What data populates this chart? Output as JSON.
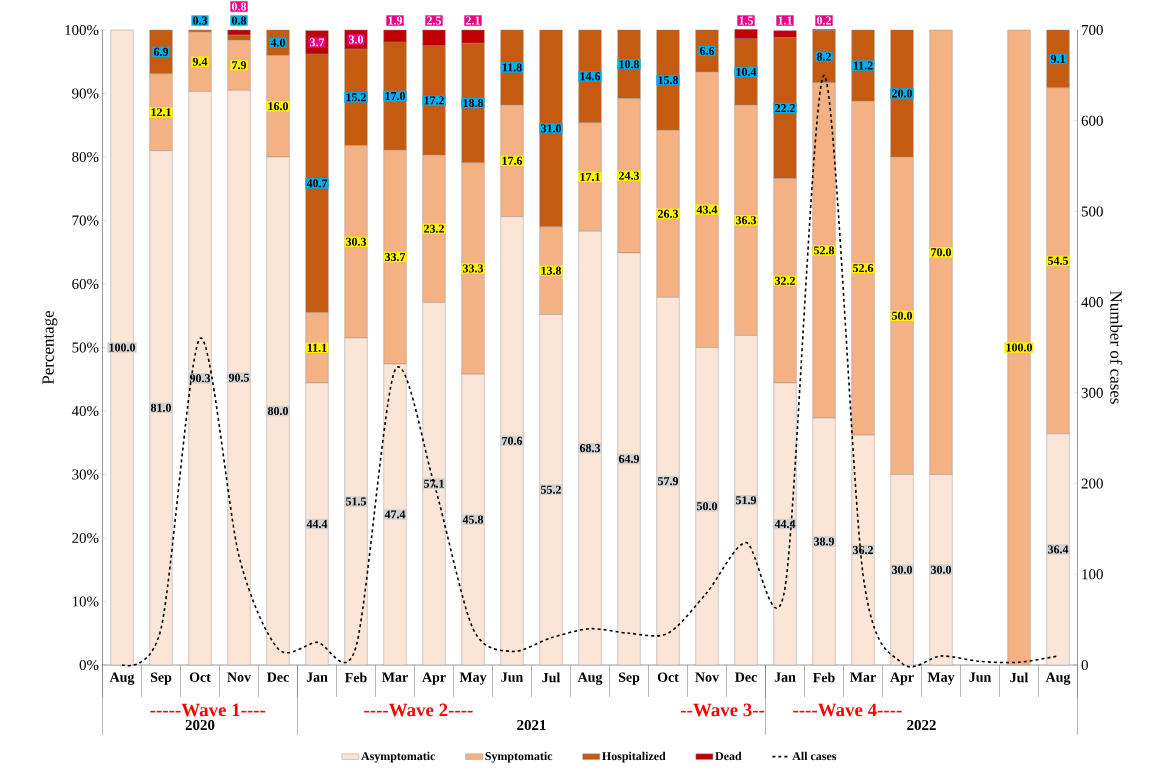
{
  "chart_data": {
    "type": "bar",
    "stacked": true,
    "legend": "bottom",
    "grid": false,
    "ylabel": "Percentage",
    "y2label": "Number of cases",
    "categories": [
      "Aug",
      "Sep",
      "Oct",
      "Nov",
      "Dec",
      "Jan",
      "Feb",
      "Mar",
      "Apr",
      "May",
      "Jun",
      "Jul",
      "Aug",
      "Sep",
      "Oct",
      "Nov",
      "Dec",
      "Jan",
      "Feb",
      "Mar",
      "Apr",
      "May",
      "Jun",
      "Jul",
      "Aug"
    ],
    "ylim": [
      0,
      100
    ],
    "yticks": [
      {
        "value": 0,
        "label": "0%"
      },
      {
        "value": 10,
        "label": "10%"
      },
      {
        "value": 20,
        "label": "20%"
      },
      {
        "value": 30,
        "label": "30%"
      },
      {
        "value": 40,
        "label": "40%"
      },
      {
        "value": 50,
        "label": "50%"
      },
      {
        "value": 60,
        "label": "60%"
      },
      {
        "value": 70,
        "label": "70%"
      },
      {
        "value": 80,
        "label": "80%"
      },
      {
        "value": 90,
        "label": "90%"
      },
      {
        "value": 100,
        "label": "100%"
      }
    ],
    "y2lim": [
      0,
      700
    ],
    "y2ticks": [
      0,
      100,
      200,
      300,
      400,
      500,
      600,
      700
    ],
    "series": [
      {
        "name": "Asymptomatic",
        "color": "#fbe5d6",
        "values": [
          100.0,
          81.0,
          90.3,
          90.5,
          80.0,
          44.4,
          51.5,
          47.4,
          57.1,
          45.8,
          70.6,
          55.2,
          68.3,
          64.9,
          57.9,
          50.0,
          51.9,
          44.4,
          38.9,
          36.2,
          30.0,
          30.0,
          null,
          0,
          36.4
        ],
        "value_labels": [
          "100.0",
          "81.0",
          "90.3",
          "90.5",
          "80.0",
          "44.4",
          "51.5",
          "47.4",
          "57.1",
          "45.8",
          "70.6",
          "55.2",
          "68.3",
          "64.9",
          "57.9",
          "50.0",
          "51.9",
          "44.4",
          "38.9",
          "36.2",
          "30.0",
          "30.0",
          null,
          null,
          "36.4"
        ]
      },
      {
        "name": "Symptomatic",
        "color": "#f4b183",
        "values": [
          0,
          12.1,
          9.4,
          7.9,
          16.0,
          11.1,
          30.3,
          33.7,
          23.2,
          33.3,
          17.6,
          13.8,
          17.1,
          24.3,
          26.3,
          43.4,
          36.3,
          32.2,
          52.8,
          52.6,
          50.0,
          70.0,
          null,
          100.0,
          54.5
        ],
        "value_labels": [
          null,
          "12.1",
          "9.4",
          "7.9",
          "16.0",
          "11.1",
          "30.3",
          "33.7",
          "23.2",
          "33.3",
          "17.6",
          "13.8",
          "17.1",
          "24.3",
          "26.3",
          "43.4",
          "36.3",
          "32.2",
          "52.8",
          "52.6",
          "50.0",
          "70.0",
          null,
          "100.0",
          "54.5"
        ]
      },
      {
        "name": "Hospitalized",
        "color": "#c55a11",
        "values": [
          0,
          6.9,
          0.3,
          0.8,
          4.0,
          40.7,
          15.2,
          17.0,
          17.2,
          18.8,
          11.8,
          31.0,
          14.6,
          10.8,
          15.8,
          6.6,
          10.4,
          22.2,
          8.2,
          11.2,
          20.0,
          0,
          null,
          0,
          9.1
        ],
        "value_labels": [
          null,
          "6.9",
          "0.3",
          "0.8",
          "4.0",
          "40.7",
          "15.2",
          "17.0",
          "17.2",
          "18.8",
          "11.8",
          "31.0",
          "14.6",
          "10.8",
          "15.8",
          "6.6",
          "10.4",
          "22.2",
          "8.2",
          "11.2",
          "20.0",
          null,
          null,
          null,
          "9.1"
        ]
      },
      {
        "name": "Dead",
        "color": "#c00000",
        "values": [
          0,
          0,
          0,
          0.8,
          0,
          3.7,
          3.0,
          1.9,
          2.5,
          2.1,
          0,
          0,
          0,
          0,
          0,
          0,
          1.5,
          1.1,
          0.2,
          0,
          0,
          0,
          null,
          0,
          0
        ],
        "value_labels": [
          null,
          null,
          null,
          "0.8",
          null,
          "3.7",
          "3.0",
          "1.9",
          "2.5",
          "2.1",
          null,
          null,
          null,
          null,
          null,
          null,
          "1.5",
          "1.1",
          "0.2",
          null,
          null,
          null,
          null,
          null,
          null
        ]
      },
      {
        "name": "All cases",
        "type": "line",
        "axis": "y2",
        "line_style": "dashed",
        "color": "#000000",
        "values": [
          0,
          40,
          360,
          120,
          18,
          25,
          20,
          325,
          200,
          40,
          15,
          30,
          40,
          35,
          35,
          80,
          135,
          85,
          650,
          100,
          2,
          10,
          4,
          3,
          10
        ]
      }
    ],
    "annotations": [
      "-----Wave 1----",
      "----Wave 2----",
      "--Wave 3--",
      "----Wave 4----",
      "2020",
      "2021",
      "2022"
    ]
  }
}
